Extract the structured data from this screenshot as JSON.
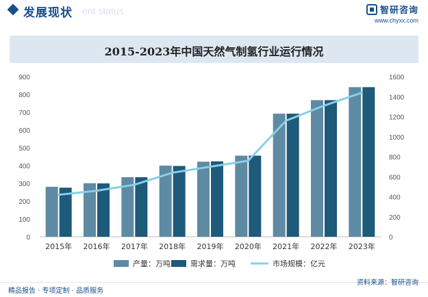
{
  "header": {
    "section_title": "发展现状",
    "section_subtitle": "ent status",
    "brand_name": "智研咨询",
    "brand_url": "www.chyxx.com"
  },
  "footer": {
    "left_text": "精品报告 · 专项定制 · 品质服务",
    "right_text": "资料来源：智研咨询"
  },
  "watermark_text": "智研咨询",
  "colors": {
    "production": "#5f8aa3",
    "demand": "#1e5a7a",
    "market": "#86cfea",
    "brand": "#1a4f8b"
  },
  "chart_data": {
    "type": "bar",
    "title": "2015-2023年中国天然气制氢行业运行情况",
    "categories": [
      "2015年",
      "2016年",
      "2017年",
      "2018年",
      "2019年",
      "2020年",
      "2021年",
      "2022年",
      "2023年"
    ],
    "series": [
      {
        "name": "产量：万吨",
        "type": "bar",
        "axis": "left",
        "values": [
          281,
          301,
          335,
          400,
          422,
          456,
          692,
          768,
          841
        ]
      },
      {
        "name": "需求量：万吨",
        "type": "bar",
        "axis": "left",
        "values": [
          276,
          300,
          335,
          398,
          424,
          456,
          692,
          768,
          841
        ]
      },
      {
        "name": "市场规模：亿元",
        "type": "line",
        "axis": "right",
        "values": [
          420,
          460,
          520,
          640,
          700,
          760,
          1160,
          1310,
          1440
        ]
      }
    ],
    "y_left": {
      "min": 0,
      "max": 900,
      "step": 100,
      "ticks": [
        "0",
        "100",
        "200",
        "300",
        "400",
        "500",
        "600",
        "700",
        "800",
        "900"
      ]
    },
    "y_right": {
      "min": 0,
      "max": 1600,
      "step": 200,
      "ticks": [
        "0",
        "200",
        "400",
        "600",
        "800",
        "1000",
        "1200",
        "1400",
        "1600"
      ]
    },
    "legend_position": "bottom",
    "grid": false
  }
}
